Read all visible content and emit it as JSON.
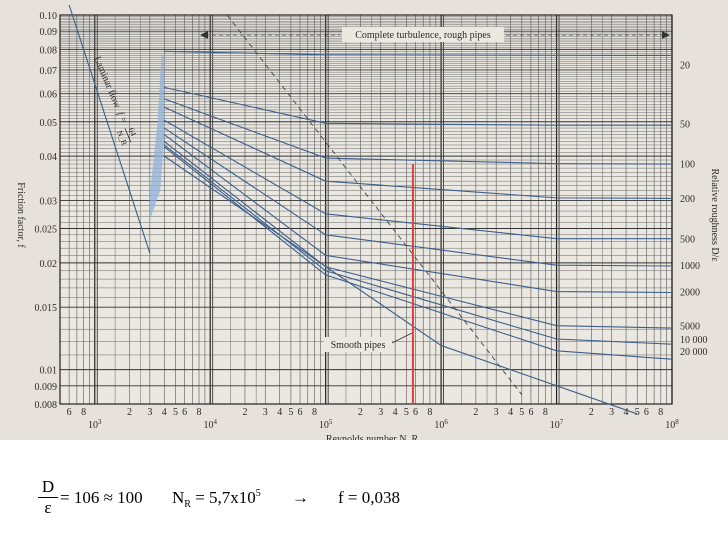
{
  "chart_data": {
    "type": "line",
    "title": "",
    "xlabel": "Reynolds number N_R",
    "ylabel": "Friction factor, f",
    "y2label": "Relative roughness D/ε",
    "xscale": "log",
    "yscale": "log",
    "xlim": [
      500,
      100000000
    ],
    "ylim": [
      0.008,
      0.1
    ],
    "grid": true,
    "x_tick_labels": {
      "minor": [
        "6",
        "8",
        "2",
        "3",
        "4",
        "5",
        "6",
        "8",
        "2",
        "3",
        "4",
        "5",
        "6",
        "8",
        "2",
        "3",
        "4",
        "5",
        "6",
        "8",
        "2",
        "3",
        "4",
        "5",
        "6",
        "8",
        "2",
        "3",
        "4",
        "5",
        "6",
        "8",
        "2",
        "3",
        "4",
        "5",
        "6",
        "8"
      ],
      "major": [
        {
          "base": "10",
          "exp": "3"
        },
        {
          "base": "10",
          "exp": "4"
        },
        {
          "base": "10",
          "exp": "5"
        },
        {
          "base": "10",
          "exp": "6"
        },
        {
          "base": "10",
          "exp": "7"
        },
        {
          "base": "10",
          "exp": "8"
        }
      ]
    },
    "y_tick_labels": [
      "0.10",
      "0.09",
      "0.08",
      "0.07",
      "0.06",
      "0.05",
      "0.04",
      "0.03",
      "0.025",
      "0.02",
      "0.015",
      "0.01",
      "0.009",
      "0.008"
    ],
    "y_tick_values": [
      0.1,
      0.09,
      0.08,
      0.07,
      0.06,
      0.05,
      0.04,
      0.03,
      0.025,
      0.02,
      0.015,
      0.01,
      0.009,
      0.008
    ],
    "roughness_labels": [
      "20",
      "50",
      "100",
      "200",
      "500",
      "1000",
      "2000",
      "5000",
      "10 000",
      "20 000"
    ],
    "roughness_values": [
      20,
      50,
      100,
      200,
      500,
      1000,
      2000,
      5000,
      10000,
      20000
    ],
    "annotations": {
      "turbulence": "Complete turbulence, rough pipes",
      "smooth": "Smooth pipes",
      "laminar_text": "Laminar flow",
      "laminar_f": "f =",
      "laminar_num": "64",
      "laminar_den": "N_R"
    },
    "series": [
      {
        "values": [
          [
            600,
            0.1067
          ],
          [
            3000,
            0.0213
          ]
        ]
      },
      {
        "values": [
          [
            4000,
            0.04
          ],
          [
            1000000,
            0.0117
          ],
          [
            50000000,
            0.0075
          ]
        ]
      },
      {
        "values": [
          [
            4000,
            0.079
          ],
          [
            100000,
            0.0772
          ],
          [
            100000000,
            0.0769
          ]
        ]
      },
      {
        "values": [
          [
            4000,
            0.0625
          ],
          [
            100000,
            0.0495
          ],
          [
            10000000,
            0.0489
          ],
          [
            100000000,
            0.0489
          ]
        ]
      },
      {
        "values": [
          [
            4000,
            0.058
          ],
          [
            100000,
            0.0395
          ],
          [
            10000000,
            0.0381
          ],
          [
            100000000,
            0.038
          ]
        ]
      },
      {
        "values": [
          [
            4000,
            0.055
          ],
          [
            100000,
            0.034
          ],
          [
            10000000,
            0.0305
          ],
          [
            100000000,
            0.0304
          ]
        ]
      },
      {
        "values": [
          [
            4000,
            0.0505
          ],
          [
            100000,
            0.0275
          ],
          [
            10000000,
            0.0234
          ],
          [
            100000000,
            0.0234
          ]
        ]
      },
      {
        "values": [
          [
            4000,
            0.048
          ],
          [
            100000,
            0.024
          ],
          [
            10000000,
            0.0197
          ],
          [
            100000000,
            0.0196
          ]
        ]
      },
      {
        "values": [
          [
            4000,
            0.046
          ],
          [
            100000,
            0.021
          ],
          [
            10000000,
            0.0166
          ],
          [
            100000000,
            0.0165
          ]
        ]
      },
      {
        "values": [
          [
            4000,
            0.044
          ],
          [
            100000,
            0.0195
          ],
          [
            10000000,
            0.0133
          ],
          [
            100000000,
            0.0131
          ]
        ]
      },
      {
        "values": [
          [
            4000,
            0.043
          ],
          [
            100000,
            0.019
          ],
          [
            10000000,
            0.0122
          ],
          [
            100000000,
            0.0118
          ]
        ]
      },
      {
        "values": [
          [
            4000,
            0.0425
          ],
          [
            100000,
            0.0185
          ],
          [
            10000000,
            0.0113
          ],
          [
            100000000,
            0.0107
          ]
        ]
      }
    ],
    "turbulence_boundary": [
      [
        14000,
        0.1
      ],
      [
        5000000,
        0.0085
      ]
    ],
    "highlight_line": {
      "x": 570000,
      "y_from": 0.008,
      "y_to": 0.038,
      "color": "#d94040"
    },
    "laminar_band_color": "#8fb3d9"
  },
  "formula": {
    "frac_num": "D",
    "frac_den": "ε",
    "eq": "= 106 ≈ 100",
    "nr_base": "N",
    "nr_sub": "R",
    "nr_eq": " = 5,7x10",
    "nr_exp": "5",
    "arrow": "→",
    "f_eq": "f = 0,038"
  }
}
